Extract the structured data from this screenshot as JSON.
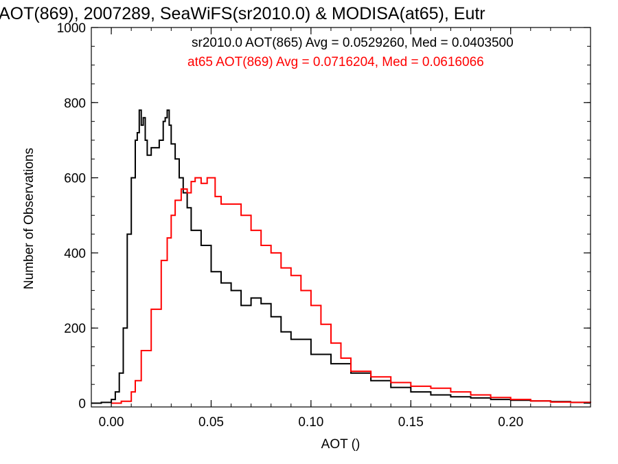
{
  "chart_data": {
    "type": "line",
    "title": "AOT(869), 2007289, SeaWiFS(sr2010.0) & MODISA(at65), Eutr",
    "xlabel": "AOT ()",
    "ylabel": "Number of Observations",
    "xlim": [
      -0.01,
      0.24
    ],
    "ylim": [
      -10,
      1000
    ],
    "x_ticks": [
      {
        "value": 0.0,
        "label": "0.00"
      },
      {
        "value": 0.05,
        "label": "0.05"
      },
      {
        "value": 0.1,
        "label": "0.10"
      },
      {
        "value": 0.15,
        "label": "0.15"
      },
      {
        "value": 0.2,
        "label": "0.20"
      }
    ],
    "y_ticks": [
      {
        "value": 0,
        "label": "0"
      },
      {
        "value": 200,
        "label": "200"
      },
      {
        "value": 400,
        "label": "400"
      },
      {
        "value": 600,
        "label": "600"
      },
      {
        "value": 800,
        "label": "800"
      },
      {
        "value": 1000,
        "label": "1000"
      }
    ],
    "grid": false,
    "legend_position": "top-right",
    "legend": [
      {
        "text": "sr2010.0 AOT(865) Avg = 0.0529260, Med = 0.0403500",
        "color": "#000000"
      },
      {
        "text": "at65 AOT(869) Avg = 0.0716204, Med = 0.0616066",
        "color": "#ff0000"
      }
    ],
    "series": [
      {
        "color": "#000000",
        "step": true,
        "x": [
          -0.01,
          -0.005,
          0.0,
          0.002,
          0.004,
          0.006,
          0.008,
          0.01,
          0.012,
          0.013,
          0.014,
          0.015,
          0.016,
          0.017,
          0.018,
          0.02,
          0.022,
          0.024,
          0.026,
          0.027,
          0.028,
          0.029,
          0.03,
          0.032,
          0.034,
          0.036,
          0.038,
          0.04,
          0.045,
          0.05,
          0.055,
          0.06,
          0.065,
          0.07,
          0.075,
          0.08,
          0.085,
          0.09,
          0.1,
          0.11,
          0.12,
          0.13,
          0.14,
          0.15,
          0.16,
          0.17,
          0.18,
          0.19,
          0.2,
          0.21,
          0.22,
          0.23,
          0.24
        ],
        "y": [
          0,
          2,
          10,
          30,
          80,
          200,
          450,
          600,
          700,
          720,
          780,
          740,
          760,
          700,
          660,
          680,
          680,
          700,
          750,
          760,
          780,
          740,
          690,
          650,
          600,
          560,
          520,
          460,
          420,
          350,
          320,
          300,
          260,
          280,
          265,
          230,
          190,
          170,
          130,
          105,
          80,
          60,
          42,
          30,
          22,
          17,
          14,
          10,
          8,
          6,
          4,
          2,
          1
        ]
      },
      {
        "color": "#ff0000",
        "step": true,
        "x": [
          0.0,
          0.005,
          0.01,
          0.012,
          0.015,
          0.02,
          0.025,
          0.028,
          0.03,
          0.032,
          0.035,
          0.038,
          0.04,
          0.042,
          0.045,
          0.048,
          0.05,
          0.052,
          0.055,
          0.06,
          0.065,
          0.07,
          0.075,
          0.08,
          0.085,
          0.09,
          0.095,
          0.1,
          0.105,
          0.11,
          0.115,
          0.12,
          0.13,
          0.14,
          0.15,
          0.16,
          0.17,
          0.18,
          0.19,
          0.2,
          0.21,
          0.22,
          0.23,
          0.24
        ],
        "y": [
          0,
          5,
          30,
          60,
          140,
          250,
          380,
          440,
          500,
          540,
          570,
          560,
          590,
          600,
          585,
          600,
          600,
          550,
          530,
          530,
          500,
          460,
          420,
          400,
          360,
          340,
          300,
          260,
          210,
          160,
          120,
          85,
          70,
          55,
          45,
          40,
          30,
          22,
          15,
          10,
          6,
          3,
          2,
          1
        ]
      }
    ]
  }
}
